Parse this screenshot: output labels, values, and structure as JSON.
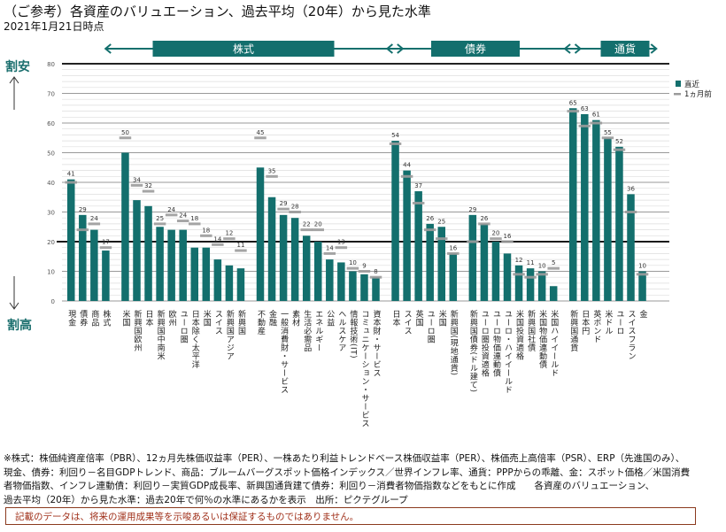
{
  "header": {
    "title": "（ご参考）各資産のバリュエーション、過去平均（20年）から見た水準",
    "date": "2021年1月21日時点"
  },
  "axis_side": {
    "top_label": "割安",
    "bottom_label": "割高"
  },
  "chart_data": {
    "type": "bar",
    "title": "（ご参考）各資産のバリュエーション、過去平均（20年）から見た水準",
    "subtitle": "2021年1月21日時点",
    "ylim": [
      0,
      80
    ],
    "yticks": [
      0,
      10,
      20,
      30,
      40,
      50,
      60,
      70,
      80
    ],
    "reference_line": 20,
    "grid": true,
    "legend_position": "top-right",
    "legend": [
      {
        "name": "直近",
        "style": "bar",
        "color": "#136f6d"
      },
      {
        "name": "1ヵ月前",
        "style": "dash",
        "color": "#9b9b9b"
      }
    ],
    "sections": [
      {
        "label": "株式",
        "from": 5,
        "to": 27
      },
      {
        "label": "債券",
        "from": 28,
        "to": 41
      },
      {
        "label": "通貨",
        "from": 42,
        "to": 48
      }
    ],
    "categories": [
      "現金",
      "債券",
      "商品",
      "株式",
      "米国",
      "新興国欧州",
      "日本",
      "新興国中南米",
      "欧州",
      "ユーロ圏",
      "日本除く太平洋",
      "米国",
      "スイス",
      "新興国アジア",
      "新興国",
      "不動産",
      "金融",
      "一般消費財・サービス",
      "素材",
      "生活必需品",
      "エネルギー",
      "公益",
      "ヘルスケア",
      "情報技術(IT)",
      "コミュニケーション・サービス",
      "資本財・サービス",
      "日本",
      "スイス",
      "英国",
      "ユーロ圏",
      "米国",
      "新興国(現地通貨)",
      "新興国債券(ドル建て)",
      "ユーロ圏投資適格",
      "ユーロ物価連動債",
      "ユーロ・ハイイールド",
      "米国投資適格",
      "新興国社債",
      "米国物価連動債",
      "米国ハイイールド",
      "新興国通貨",
      "日本円",
      "英ポンド",
      "米ドル",
      "ユーロ",
      "スイスフラン",
      "金"
    ],
    "groups": [
      4,
      11,
      11,
      6,
      8,
      7
    ],
    "series": [
      {
        "name": "直近",
        "values": [
          41,
          29,
          24,
          17,
          50,
          34,
          32,
          25,
          24,
          24,
          18,
          18,
          14,
          12,
          11,
          45,
          35,
          29,
          28,
          22,
          20,
          14,
          13,
          10,
          9,
          8,
          54,
          44,
          37,
          26,
          25,
          16,
          29,
          26,
          20,
          16,
          12,
          11,
          10,
          5,
          65,
          63,
          61,
          55,
          52,
          36,
          10
        ]
      },
      {
        "name": "1ヵ月前",
        "values": [
          40,
          24,
          26,
          18,
          55,
          39,
          37,
          26,
          29,
          27,
          26,
          22,
          19,
          21,
          17,
          55,
          42,
          31,
          30,
          24,
          24,
          16,
          18,
          11,
          10,
          8,
          53,
          42,
          33,
          24,
          21,
          16,
          20,
          26,
          21,
          20,
          9,
          8,
          9,
          11,
          64,
          59,
          60,
          55,
          51,
          30,
          9
        ]
      }
    ]
  },
  "footer": {
    "notes": [
      "※株式：株価純資産倍率（PBR）、12ヵ月先株価収益率（PER）、一株あたり利益トレンドベース株価収益率（PER）、株価売上高倍率（PSR）、ERP（先進国のみ）、",
      "現金、債券：利回り－名目GDPトレンド、商品：ブルームバーグスポット価格インデックス／世界インフレ率、通貨：PPPからの乖離、金：スポット価格／米国消費",
      "者物価指数、インフレ連動債：利回り－実質GDP成長率、新興国通貨建て債券：利回り－消費者物価指数などをもとに作成　　各資産のバリュエーション、",
      "過去平均（20年）から見た水準：過去20年で何％の水準にあるかを表示　出所：ピクテグループ"
    ],
    "disclaimer": "記載のデータは、将来の運用成果等を示唆あるいは保証するものではありません。"
  },
  "colors": {
    "bar": "#136f6d",
    "prior": "#9b9b9b",
    "banner": "#136f6d",
    "label_value": "#333333",
    "side_label": "#1b6f6e"
  }
}
